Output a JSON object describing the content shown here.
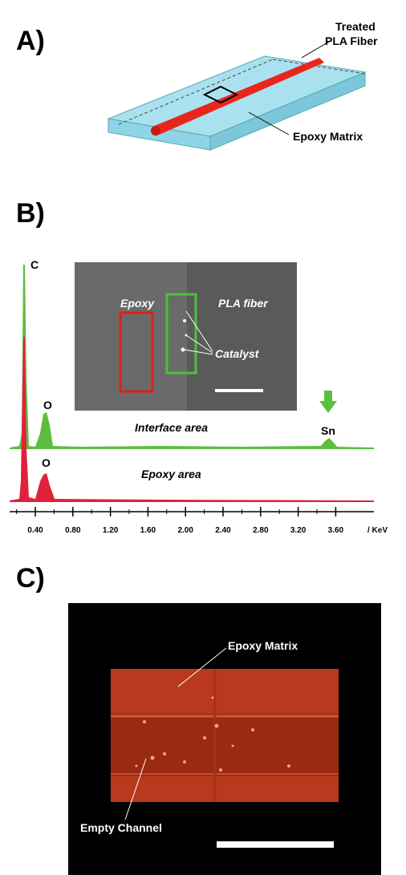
{
  "panel_a": {
    "label": "A)",
    "fiber_label": [
      "Treated",
      "PLA Fiber"
    ],
    "matrix_label": "Epoxy Matrix"
  },
  "panel_b": {
    "label": "B)",
    "peak_c": "C",
    "peak_o_interface": "O",
    "peak_sn": "Sn",
    "peak_o_epoxy": "O",
    "interface_label": "Interface area",
    "epoxy_area_label": "Epoxy area",
    "inset": {
      "epoxy": "Epoxy",
      "pla_fiber": "PLA fiber",
      "catalyst": "Catalyst"
    },
    "axis": {
      "ticks": [
        "0.40",
        "0.80",
        "1.20",
        "1.60",
        "2.00",
        "2.40",
        "2.80",
        "3.20",
        "3.60"
      ],
      "unit": "/ KeV"
    }
  },
  "panel_c": {
    "label": "C)",
    "matrix_label": "Epoxy Matrix",
    "channel_label": "Empty Channel"
  }
}
